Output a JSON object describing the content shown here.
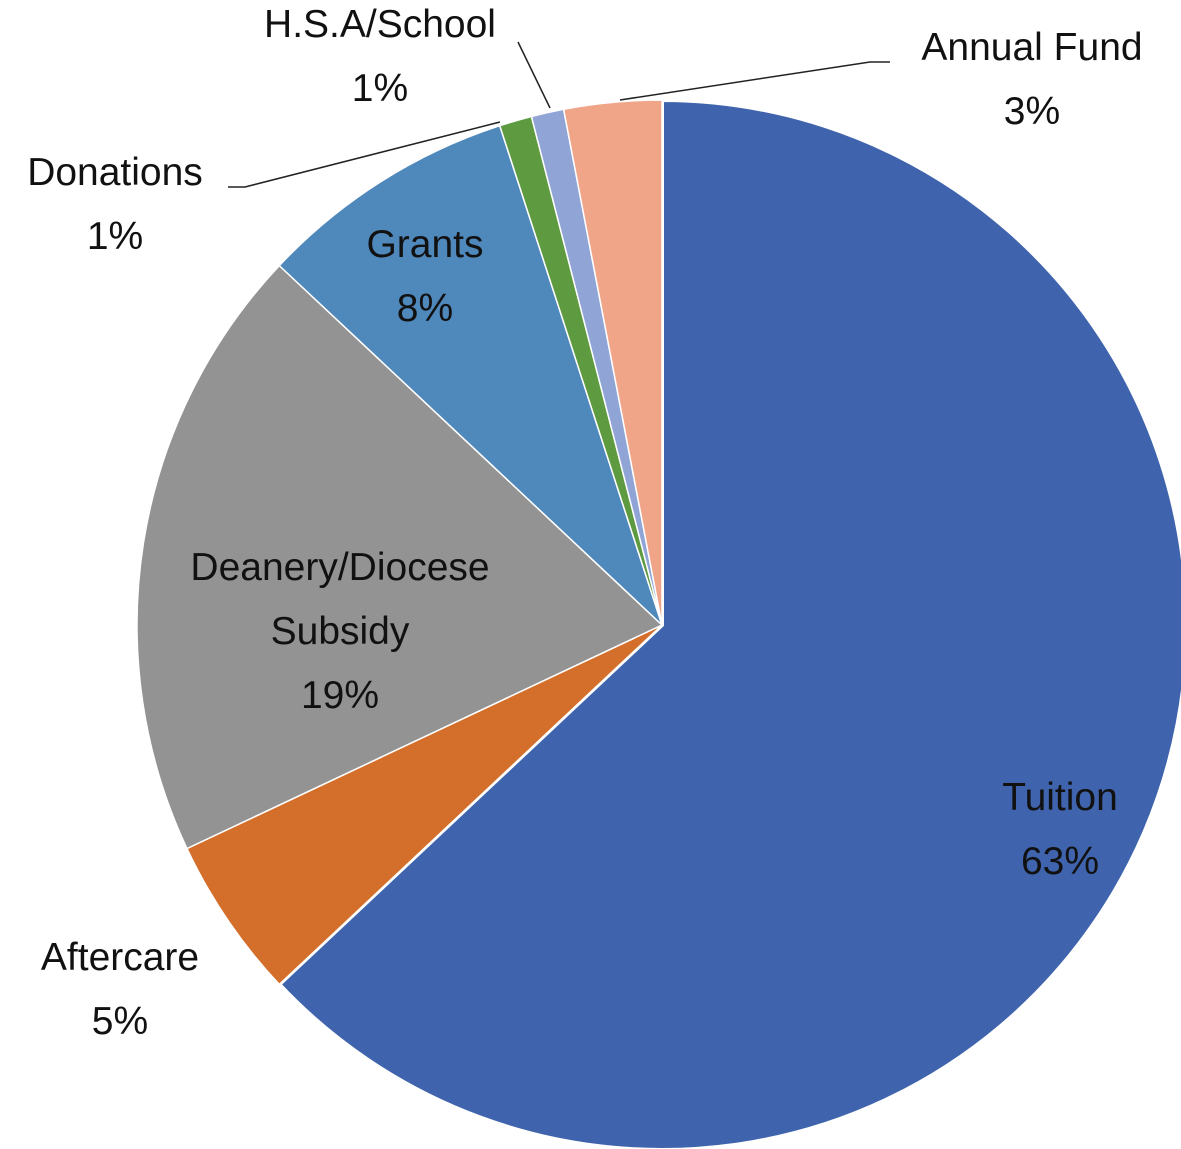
{
  "chart_data": {
    "type": "pie",
    "categories": [
      "Tuition",
      "Aftercare",
      "Deanery/Diocese Subsidy",
      "Grants",
      "Donations",
      "H.S.A/School",
      "Annual Fund"
    ],
    "values": [
      63,
      5,
      19,
      8,
      1,
      1,
      3
    ],
    "value_labels": [
      "63%",
      "5%",
      "19%",
      "8%",
      "1%",
      "1%",
      "3%"
    ],
    "colors": [
      "#3f64ad",
      "#d36f2b",
      "#939393",
      "#4f88bb",
      "#5e9a3f",
      "#90a4d6",
      "#f0a589"
    ]
  }
}
